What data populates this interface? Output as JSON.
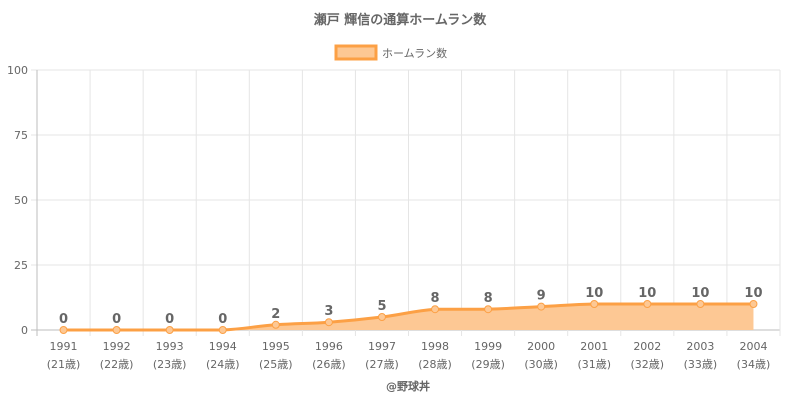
{
  "chart_data": {
    "type": "line",
    "title": "瀬戸 輝信の通算ホームラン数",
    "legend": {
      "label": "ホームラン数",
      "position": "top"
    },
    "categories": [
      "1991",
      "1992",
      "1993",
      "1994",
      "1995",
      "1996",
      "1997",
      "1998",
      "1999",
      "2000",
      "2001",
      "2002",
      "2003",
      "2004"
    ],
    "ages": [
      "(21歳)",
      "(22歳)",
      "(23歳)",
      "(24歳)",
      "(25歳)",
      "(26歳)",
      "(27歳)",
      "(28歳)",
      "(29歳)",
      "(30歳)",
      "(31歳)",
      "(32歳)",
      "(33歳)",
      "(34歳)"
    ],
    "series": [
      {
        "name": "ホームラン数",
        "values": [
          0,
          0,
          0,
          0,
          2,
          3,
          5,
          8,
          8,
          9,
          10,
          10,
          10,
          10
        ],
        "color": "#fca045",
        "fill": "#fdc894"
      }
    ],
    "ylim": [
      0,
      100
    ],
    "yticks": [
      0,
      25,
      50,
      75,
      100
    ],
    "grid": true,
    "area_fill": true,
    "data_labels": true
  },
  "credit": "@野球丼"
}
